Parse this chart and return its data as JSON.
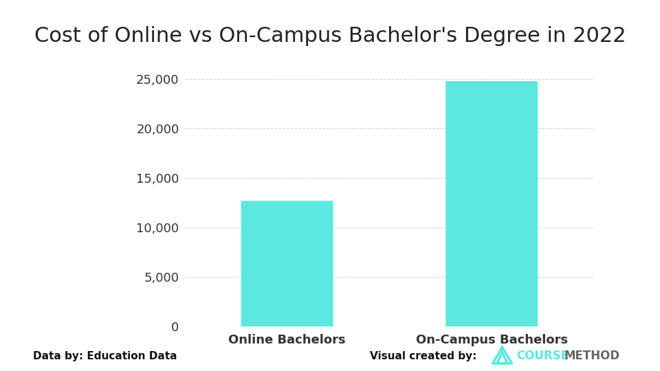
{
  "title": "Cost of Online vs On-Campus Bachelor's Degree in 2022",
  "categories": [
    "Online Bachelors",
    "On-Campus Bachelors"
  ],
  "values": [
    12700,
    24800
  ],
  "bar_color": "#5CE8E0",
  "ylim": [
    0,
    27000
  ],
  "yticks": [
    0,
    5000,
    10000,
    15000,
    20000,
    25000
  ],
  "ytick_labels": [
    "0",
    "5,000",
    "10,000",
    "15,000",
    "20,000",
    "25,000"
  ],
  "grid_color": "#cccccc",
  "background_color": "#ffffff",
  "title_fontsize": 22,
  "tick_fontsize": 13,
  "xlabel_fontsize": 13,
  "footer_left": "Data by: Education Data",
  "footer_right": "Visual created by:",
  "footer_fontsize": 11,
  "bar_width": 0.45,
  "x_positions": [
    0.5,
    1.5
  ],
  "xlim": [
    0.0,
    2.0
  ]
}
